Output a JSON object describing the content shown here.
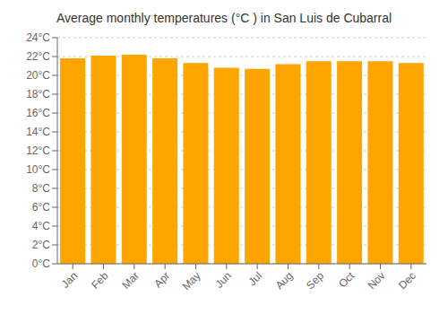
{
  "chart_data": {
    "type": "bar",
    "title": "Average monthly temperatures (°C ) in San Luis de Cubarral",
    "categories": [
      "Jan",
      "Feb",
      "Mar",
      "Apr",
      "May",
      "Jun",
      "Jul",
      "Aug",
      "Sep",
      "Oct",
      "Nov",
      "Dec"
    ],
    "values": [
      21.8,
      22.1,
      22.2,
      21.8,
      21.3,
      20.8,
      20.7,
      21.2,
      21.5,
      21.5,
      21.5,
      21.3
    ],
    "color": "#FFA500",
    "ylim": [
      0,
      24
    ],
    "yticks": [
      {
        "value": 0,
        "label": "0°C"
      },
      {
        "value": 2,
        "label": "2°C"
      },
      {
        "value": 4,
        "label": "4°C"
      },
      {
        "value": 6,
        "label": "6°C"
      },
      {
        "value": 8,
        "label": "8°C"
      },
      {
        "value": 10,
        "label": "10°C"
      },
      {
        "value": 12,
        "label": "12°C"
      },
      {
        "value": 14,
        "label": "14°C"
      },
      {
        "value": 16,
        "label": "16°C"
      },
      {
        "value": 18,
        "label": "18°C"
      },
      {
        "value": 20,
        "label": "20°C"
      },
      {
        "value": 22,
        "label": "22°C"
      },
      {
        "value": 24,
        "label": "24°C"
      }
    ],
    "grid": true
  }
}
